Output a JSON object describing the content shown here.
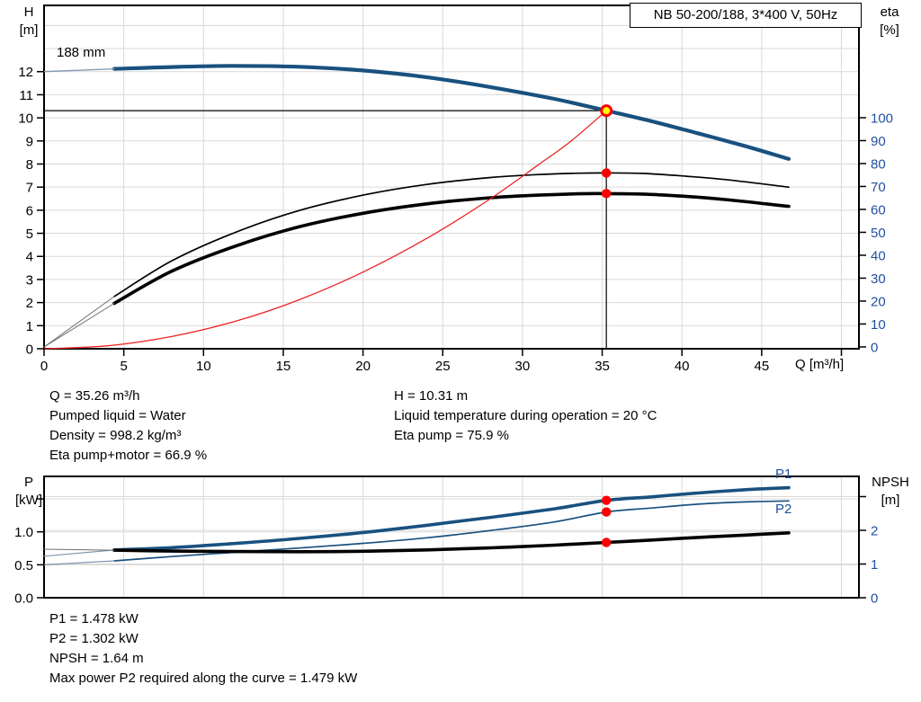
{
  "colors": {
    "curve_blue": "#19517f",
    "axis_text_blue": "#2050a0",
    "red_dot": "#ff0000",
    "system_curve_red": "#ee2222",
    "duty_yellow": "#ffff00",
    "grid": "#d9d9d9",
    "lead_blue": "#7d97b0",
    "lead_gray": "#6f6f6f",
    "black": "#000000"
  },
  "info": {
    "top_left": [
      "Q = 35.26 m³/h",
      "Pumped liquid = Water",
      "Density = 998.2 kg/m³",
      "Eta pump+motor = 66.9 %"
    ],
    "top_right": [
      "H = 10.31 m",
      "Liquid temperature during operation = 20 °C",
      "Eta pump = 75.9 %"
    ],
    "bottom": [
      "P1 = 1.478 kW",
      "P2 = 1.302 kW",
      "NPSH = 1.64 m",
      "Max power P2 required along the curve = 1.479 kW"
    ]
  },
  "chart_data": [
    {
      "id": "qh-eta-chart",
      "type": "line",
      "title": "NB 50-200/188, 3*400 V, 50Hz",
      "x_axis": {
        "label": "Q [m³/h]",
        "min": 0,
        "max": 51.1,
        "ticks": [
          0,
          5,
          10,
          15,
          20,
          25,
          30,
          35,
          40,
          45,
          50
        ],
        "tick_labels": [
          "0",
          "5",
          "10",
          "15",
          "20",
          "25",
          "30",
          "35",
          "40",
          "45",
          ""
        ],
        "grid": [
          5,
          10,
          15,
          20,
          25,
          30,
          35,
          40,
          45,
          50
        ],
        "tick_color": "#000000"
      },
      "y_left": {
        "name": "H",
        "unit": "[m]",
        "min": 0,
        "max": 14.87,
        "ticks": [
          0,
          1,
          2,
          3,
          4,
          5,
          6,
          7,
          8,
          9,
          10,
          11,
          12
        ],
        "tick_labels": [
          "0",
          "1",
          "2",
          "3",
          "4",
          "5",
          "6",
          "7",
          "8",
          "9",
          "10",
          "11",
          "12"
        ],
        "grid": [
          1,
          2,
          3,
          4,
          5,
          6,
          7,
          8,
          9,
          10,
          11,
          12,
          13,
          14
        ],
        "tick_color": "#000000"
      },
      "y_right": {
        "name": "eta",
        "unit": "[%]",
        "min": -0.8,
        "max": 149,
        "ticks": [
          0,
          10,
          20,
          30,
          40,
          50,
          60,
          70,
          80,
          90,
          100
        ],
        "tick_labels": [
          "0",
          "10",
          "20",
          "30",
          "40",
          "50",
          "60",
          "70",
          "80",
          "90",
          "100"
        ],
        "grid": [],
        "tick_color": "#2050a0"
      },
      "duty_point": {
        "q": 35.26,
        "h": 10.31,
        "eta_pump": 75.9,
        "eta_pump_motor": 66.9
      },
      "crosshair": {
        "q": 35.26,
        "v": 10.31,
        "axis": "left"
      },
      "series": [
        {
          "name": "qh-curve",
          "label": "188 mm",
          "axis": "left",
          "color": "#19517f",
          "width": 4.2,
          "points": [
            [
              4.4,
              12.12
            ],
            [
              8,
              12.2
            ],
            [
              12,
              12.25
            ],
            [
              16,
              12.21
            ],
            [
              20,
              12.05
            ],
            [
              24,
              11.76
            ],
            [
              28,
              11.33
            ],
            [
              32,
              10.82
            ],
            [
              35.26,
              10.31
            ],
            [
              38,
              9.87
            ],
            [
              41,
              9.33
            ],
            [
              44,
              8.77
            ],
            [
              46.7,
              8.22
            ]
          ]
        },
        {
          "name": "qh-curve-lead",
          "axis": "left",
          "color": "#7d97b0",
          "width": 1.3,
          "points": [
            [
              0,
              12.0
            ],
            [
              4.4,
              12.12
            ]
          ]
        },
        {
          "name": "eta-pump-curve",
          "axis": "right",
          "color": "#000000",
          "width": 1.7,
          "points": [
            [
              4.4,
              22
            ],
            [
              8,
              37.5
            ],
            [
              12,
              50
            ],
            [
              16,
              59.5
            ],
            [
              20,
              66.2
            ],
            [
              24,
              70.9
            ],
            [
              28,
              73.9
            ],
            [
              31,
              75.2
            ],
            [
              33.5,
              75.8
            ],
            [
              35.26,
              75.9
            ],
            [
              37.5,
              75.7
            ],
            [
              40,
              74.6
            ],
            [
              43,
              72.8
            ],
            [
              46.7,
              69.7
            ]
          ]
        },
        {
          "name": "eta-pump-lead",
          "axis": "right",
          "color": "#6f6f6f",
          "width": 1,
          "points": [
            [
              0,
              0
            ],
            [
              4.4,
              22
            ]
          ]
        },
        {
          "name": "eta-pump-motor-curve",
          "axis": "right",
          "color": "#000000",
          "width": 3.6,
          "points": [
            [
              4.4,
              19
            ],
            [
              8,
              33
            ],
            [
              12,
              44
            ],
            [
              16,
              52.4
            ],
            [
              20,
              58.3
            ],
            [
              24,
              62.4
            ],
            [
              28,
              65.1
            ],
            [
              31,
              66.2
            ],
            [
              33.5,
              66.8
            ],
            [
              35.26,
              66.9
            ],
            [
              37.5,
              66.7
            ],
            [
              40,
              65.8
            ],
            [
              43,
              64.1
            ],
            [
              46.7,
              61.3
            ]
          ]
        },
        {
          "name": "eta-pump-motor-lead",
          "axis": "right",
          "color": "#6f6f6f",
          "width": 1,
          "points": [
            [
              0,
              0
            ],
            [
              4.4,
              19
            ]
          ]
        },
        {
          "name": "system-curve",
          "axis": "left",
          "color": "#ee2222",
          "width": 1.3,
          "points": [
            [
              0,
              0
            ],
            [
              4,
              0.13
            ],
            [
              8,
              0.53
            ],
            [
              12,
              1.19
            ],
            [
              16,
              2.12
            ],
            [
              20,
              3.32
            ],
            [
              24,
              4.78
            ],
            [
              28,
              6.5
            ],
            [
              31,
              7.97
            ],
            [
              33,
              8.97
            ],
            [
              35.26,
              10.31
            ]
          ]
        }
      ],
      "markers": [
        {
          "name": "eta-pump-dot",
          "q": 35.26,
          "v": 75.9,
          "axis": "right",
          "type": "dot"
        },
        {
          "name": "eta-pump-motor-dot",
          "q": 35.26,
          "v": 66.9,
          "axis": "right",
          "type": "dot"
        },
        {
          "name": "duty-point",
          "q": 35.26,
          "v": 10.31,
          "axis": "left",
          "type": "duty"
        }
      ]
    },
    {
      "id": "power-npsh-chart",
      "type": "line",
      "x_axis": {
        "label": "",
        "min": 0,
        "max": 51.1,
        "ticks": [],
        "tick_labels": [],
        "grid": [
          5,
          10,
          15,
          20,
          25,
          30,
          35,
          40,
          45,
          50
        ],
        "tick_color": "#000000"
      },
      "y_left": {
        "name": "P",
        "unit": "[kW]",
        "min": 0,
        "max": 1.842,
        "ticks": [
          0,
          0.5,
          1,
          1.5
        ],
        "tick_labels": [
          "0.0",
          "0.5",
          "1.0",
          ""
        ],
        "grid": [
          0.5,
          1,
          1.5
        ],
        "tick_color": "#000000"
      },
      "y_right": {
        "name": "NPSH",
        "unit": "[m]",
        "min": 0,
        "max": 3.6,
        "ticks": [
          0,
          1,
          2,
          3
        ],
        "tick_labels": [
          "0",
          "1",
          "2",
          ""
        ],
        "grid": [
          1,
          2,
          3
        ],
        "tick_color": "#2050a0"
      },
      "series": [
        {
          "name": "p1-curve",
          "label": "P1",
          "axis": "left",
          "color": "#19517f",
          "width": 3.6,
          "points": [
            [
              4.4,
              0.725
            ],
            [
              8,
              0.76
            ],
            [
              12,
              0.824
            ],
            [
              16,
              0.9
            ],
            [
              20,
              0.99
            ],
            [
              24,
              1.1
            ],
            [
              28,
              1.22
            ],
            [
              32,
              1.35
            ],
            [
              35.26,
              1.478
            ],
            [
              38,
              1.53
            ],
            [
              41,
              1.59
            ],
            [
              44,
              1.64
            ],
            [
              46.7,
              1.67
            ]
          ]
        },
        {
          "name": "p1-lead",
          "axis": "left",
          "color": "#7d97b0",
          "width": 1.2,
          "points": [
            [
              0,
              0.63
            ],
            [
              4.4,
              0.725
            ]
          ]
        },
        {
          "name": "p2-curve",
          "label": "P2",
          "axis": "left",
          "color": "#19517f",
          "width": 1.7,
          "points": [
            [
              4.4,
              0.56
            ],
            [
              8,
              0.625
            ],
            [
              12,
              0.69
            ],
            [
              16,
              0.755
            ],
            [
              20,
              0.825
            ],
            [
              24,
              0.91
            ],
            [
              28,
              1.02
            ],
            [
              32,
              1.15
            ],
            [
              35.26,
              1.302
            ],
            [
              38,
              1.36
            ],
            [
              41,
              1.42
            ],
            [
              44,
              1.455
            ],
            [
              46.7,
              1.47
            ]
          ]
        },
        {
          "name": "p2-lead",
          "axis": "left",
          "color": "#7d97b0",
          "width": 1.2,
          "points": [
            [
              0,
              0.5
            ],
            [
              4.4,
              0.56
            ]
          ]
        },
        {
          "name": "npsh-curve",
          "axis": "right",
          "color": "#000000",
          "width": 3.6,
          "points": [
            [
              4.4,
              1.41
            ],
            [
              8,
              1.385
            ],
            [
              12,
              1.37
            ],
            [
              16,
              1.365
            ],
            [
              20,
              1.38
            ],
            [
              24,
              1.42
            ],
            [
              28,
              1.48
            ],
            [
              32,
              1.56
            ],
            [
              35.26,
              1.64
            ],
            [
              38,
              1.71
            ],
            [
              41,
              1.79
            ],
            [
              44,
              1.86
            ],
            [
              46.7,
              1.925
            ]
          ]
        },
        {
          "name": "npsh-lead",
          "axis": "right",
          "color": "#6f6f6f",
          "width": 1,
          "points": [
            [
              0,
              1.44
            ],
            [
              4.4,
              1.41
            ]
          ]
        }
      ],
      "markers": [
        {
          "name": "p1-dot",
          "q": 35.26,
          "v": 1.478,
          "axis": "left",
          "type": "dot"
        },
        {
          "name": "p2-dot",
          "q": 35.26,
          "v": 1.302,
          "axis": "left",
          "type": "dot"
        },
        {
          "name": "npsh-dot",
          "q": 35.26,
          "v": 1.64,
          "axis": "right",
          "type": "dot"
        }
      ]
    }
  ]
}
